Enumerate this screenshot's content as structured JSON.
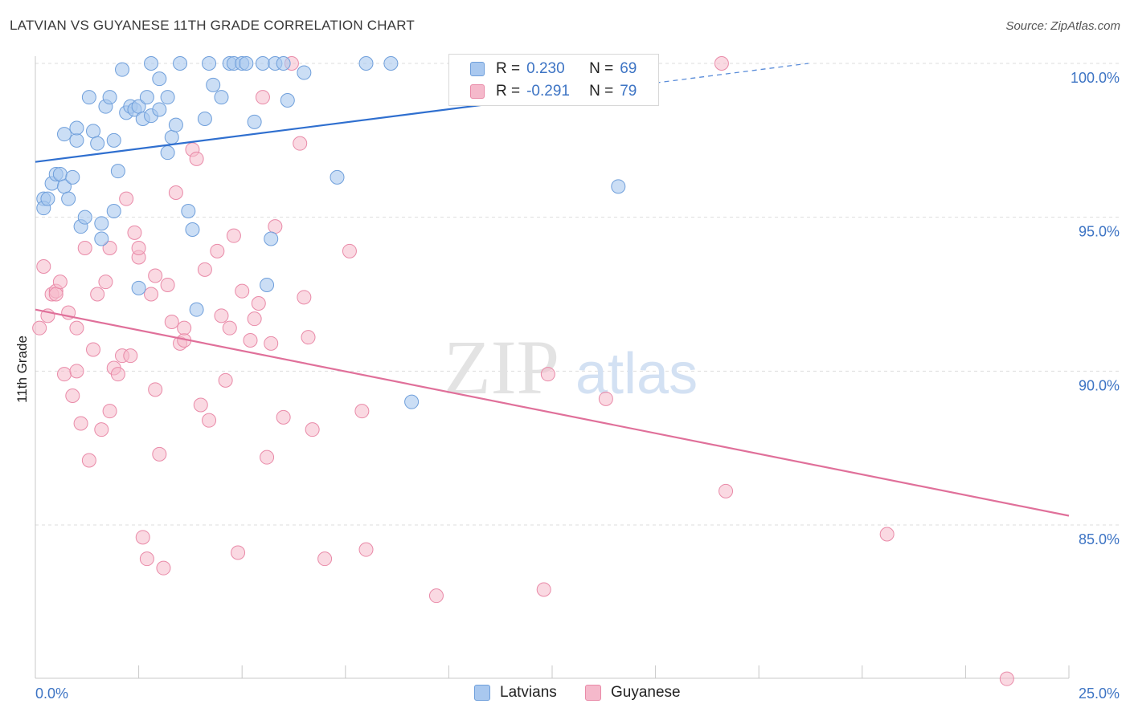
{
  "title": "LATVIAN VS GUYANESE 11TH GRADE CORRELATION CHART",
  "source": "Source: ZipAtlas.com",
  "watermark": {
    "zip": "ZIP",
    "atlas": "atlas"
  },
  "legend": {
    "rows": [
      {
        "r_label": "R =",
        "r_value": "0.230",
        "n_label": "N =",
        "n_value": "69"
      },
      {
        "r_label": "R =",
        "r_value": "-0.291",
        "n_label": "N =",
        "n_value": "79"
      }
    ]
  },
  "bottom_legend": [
    "Latvians",
    "Guyanese"
  ],
  "colors": {
    "blue_fill": "#a9c8ef",
    "blue_stroke": "#6f9fdb",
    "blue_line": "#2f6fcf",
    "pink_fill": "#f5b9cb",
    "pink_stroke": "#e98aa8",
    "pink_line": "#e0709a",
    "tick_text": "#3d74c4",
    "grid": "#dddddd"
  },
  "chart_data": {
    "type": "scatter",
    "title": "LATVIAN VS GUYANESE 11TH GRADE CORRELATION CHART",
    "xlabel": "",
    "ylabel": "11th Grade",
    "xlim": [
      0,
      25
    ],
    "ylim": [
      80,
      100.2
    ],
    "x_ticks": [
      "0.0%",
      "25.0%"
    ],
    "y_ticks": [
      {
        "value": 100,
        "label": "100.0%"
      },
      {
        "value": 95,
        "label": "95.0%"
      },
      {
        "value": 90,
        "label": "90.0%"
      },
      {
        "value": 85,
        "label": "85.0%"
      }
    ],
    "grid": true,
    "legend_position": "top-center",
    "series": [
      {
        "name": "Latvians",
        "r": 0.23,
        "n": 69,
        "trend": {
          "x0": 0,
          "y0": 96.8,
          "x1": 18.7,
          "y1": 100.0,
          "solid_until_x": 15.0
        },
        "points": [
          [
            0.2,
            95.6
          ],
          [
            0.2,
            95.3
          ],
          [
            0.3,
            95.6
          ],
          [
            0.4,
            96.1
          ],
          [
            0.5,
            96.4
          ],
          [
            0.6,
            96.4
          ],
          [
            0.7,
            96.0
          ],
          [
            0.7,
            97.7
          ],
          [
            0.8,
            95.6
          ],
          [
            0.9,
            96.3
          ],
          [
            1.0,
            97.5
          ],
          [
            1.0,
            97.9
          ],
          [
            1.1,
            94.7
          ],
          [
            1.2,
            95.0
          ],
          [
            1.3,
            98.9
          ],
          [
            1.4,
            97.8
          ],
          [
            1.5,
            97.4
          ],
          [
            1.6,
            94.3
          ],
          [
            1.6,
            94.8
          ],
          [
            1.7,
            98.6
          ],
          [
            1.8,
            98.9
          ],
          [
            1.9,
            95.2
          ],
          [
            1.9,
            97.5
          ],
          [
            2.0,
            96.5
          ],
          [
            2.1,
            99.8
          ],
          [
            2.2,
            98.4
          ],
          [
            2.3,
            98.6
          ],
          [
            2.4,
            98.5
          ],
          [
            2.5,
            98.6
          ],
          [
            2.5,
            92.7
          ],
          [
            2.6,
            98.2
          ],
          [
            2.7,
            98.9
          ],
          [
            2.8,
            98.3
          ],
          [
            2.8,
            100.0
          ],
          [
            3.0,
            99.5
          ],
          [
            3.0,
            98.5
          ],
          [
            3.2,
            97.1
          ],
          [
            3.2,
            98.9
          ],
          [
            3.3,
            97.6
          ],
          [
            3.4,
            98.0
          ],
          [
            3.5,
            100.0
          ],
          [
            3.7,
            95.2
          ],
          [
            3.8,
            94.6
          ],
          [
            3.9,
            92.0
          ],
          [
            4.1,
            98.2
          ],
          [
            4.2,
            100.0
          ],
          [
            4.3,
            99.3
          ],
          [
            4.5,
            98.9
          ],
          [
            4.7,
            100.0
          ],
          [
            4.8,
            100.0
          ],
          [
            5.0,
            100.0
          ],
          [
            5.1,
            100.0
          ],
          [
            5.3,
            98.1
          ],
          [
            5.5,
            100.0
          ],
          [
            5.6,
            92.8
          ],
          [
            5.7,
            94.3
          ],
          [
            5.8,
            100.0
          ],
          [
            6.0,
            100.0
          ],
          [
            6.1,
            98.8
          ],
          [
            6.5,
            99.7
          ],
          [
            7.3,
            96.3
          ],
          [
            8.0,
            100.0
          ],
          [
            8.6,
            100.0
          ],
          [
            9.1,
            89.0
          ],
          [
            10.4,
            100.0
          ],
          [
            11.2,
            100.0
          ],
          [
            11.3,
            100.0
          ],
          [
            12.2,
            100.0
          ],
          [
            14.1,
            96.0
          ]
        ]
      },
      {
        "name": "Guyanese",
        "r": -0.291,
        "n": 79,
        "trend": {
          "x0": 0,
          "y0": 92.0,
          "x1": 25,
          "y1": 85.3
        },
        "points": [
          [
            0.1,
            91.4
          ],
          [
            0.2,
            93.4
          ],
          [
            0.3,
            91.8
          ],
          [
            0.4,
            92.5
          ],
          [
            0.5,
            92.6
          ],
          [
            0.5,
            92.5
          ],
          [
            0.6,
            92.9
          ],
          [
            0.7,
            89.9
          ],
          [
            0.8,
            91.9
          ],
          [
            0.9,
            89.2
          ],
          [
            1.0,
            90.0
          ],
          [
            1.0,
            91.4
          ],
          [
            1.1,
            88.3
          ],
          [
            1.2,
            94.0
          ],
          [
            1.3,
            87.1
          ],
          [
            1.4,
            90.7
          ],
          [
            1.5,
            92.5
          ],
          [
            1.6,
            88.1
          ],
          [
            1.7,
            92.9
          ],
          [
            1.8,
            94.0
          ],
          [
            1.8,
            88.7
          ],
          [
            1.9,
            90.1
          ],
          [
            2.0,
            89.9
          ],
          [
            2.1,
            90.5
          ],
          [
            2.2,
            95.6
          ],
          [
            2.3,
            90.5
          ],
          [
            2.4,
            94.5
          ],
          [
            2.5,
            93.7
          ],
          [
            2.5,
            94.0
          ],
          [
            2.6,
            84.6
          ],
          [
            2.7,
            83.9
          ],
          [
            2.8,
            92.5
          ],
          [
            2.9,
            93.1
          ],
          [
            2.9,
            89.4
          ],
          [
            3.0,
            87.3
          ],
          [
            3.1,
            83.6
          ],
          [
            3.2,
            92.8
          ],
          [
            3.3,
            91.6
          ],
          [
            3.4,
            95.8
          ],
          [
            3.5,
            90.9
          ],
          [
            3.6,
            91.0
          ],
          [
            3.6,
            91.4
          ],
          [
            3.8,
            97.2
          ],
          [
            3.9,
            96.9
          ],
          [
            4.0,
            88.9
          ],
          [
            4.1,
            93.3
          ],
          [
            4.2,
            88.4
          ],
          [
            4.4,
            93.9
          ],
          [
            4.5,
            91.8
          ],
          [
            4.6,
            89.7
          ],
          [
            4.7,
            91.4
          ],
          [
            4.8,
            94.4
          ],
          [
            4.9,
            84.1
          ],
          [
            5.0,
            92.6
          ],
          [
            5.2,
            91.0
          ],
          [
            5.3,
            91.7
          ],
          [
            5.4,
            92.2
          ],
          [
            5.5,
            98.9
          ],
          [
            5.6,
            87.2
          ],
          [
            5.7,
            90.9
          ],
          [
            5.8,
            94.7
          ],
          [
            6.0,
            88.5
          ],
          [
            6.2,
            100.0
          ],
          [
            6.4,
            97.4
          ],
          [
            6.5,
            92.4
          ],
          [
            6.6,
            91.1
          ],
          [
            6.7,
            88.1
          ],
          [
            7.0,
            83.9
          ],
          [
            7.6,
            93.9
          ],
          [
            7.9,
            88.7
          ],
          [
            8.0,
            84.2
          ],
          [
            9.7,
            82.7
          ],
          [
            12.3,
            82.9
          ],
          [
            12.4,
            89.9
          ],
          [
            13.8,
            89.1
          ],
          [
            16.6,
            100.0
          ],
          [
            16.7,
            86.1
          ],
          [
            20.6,
            84.7
          ],
          [
            23.5,
            80.0
          ]
        ]
      }
    ]
  }
}
